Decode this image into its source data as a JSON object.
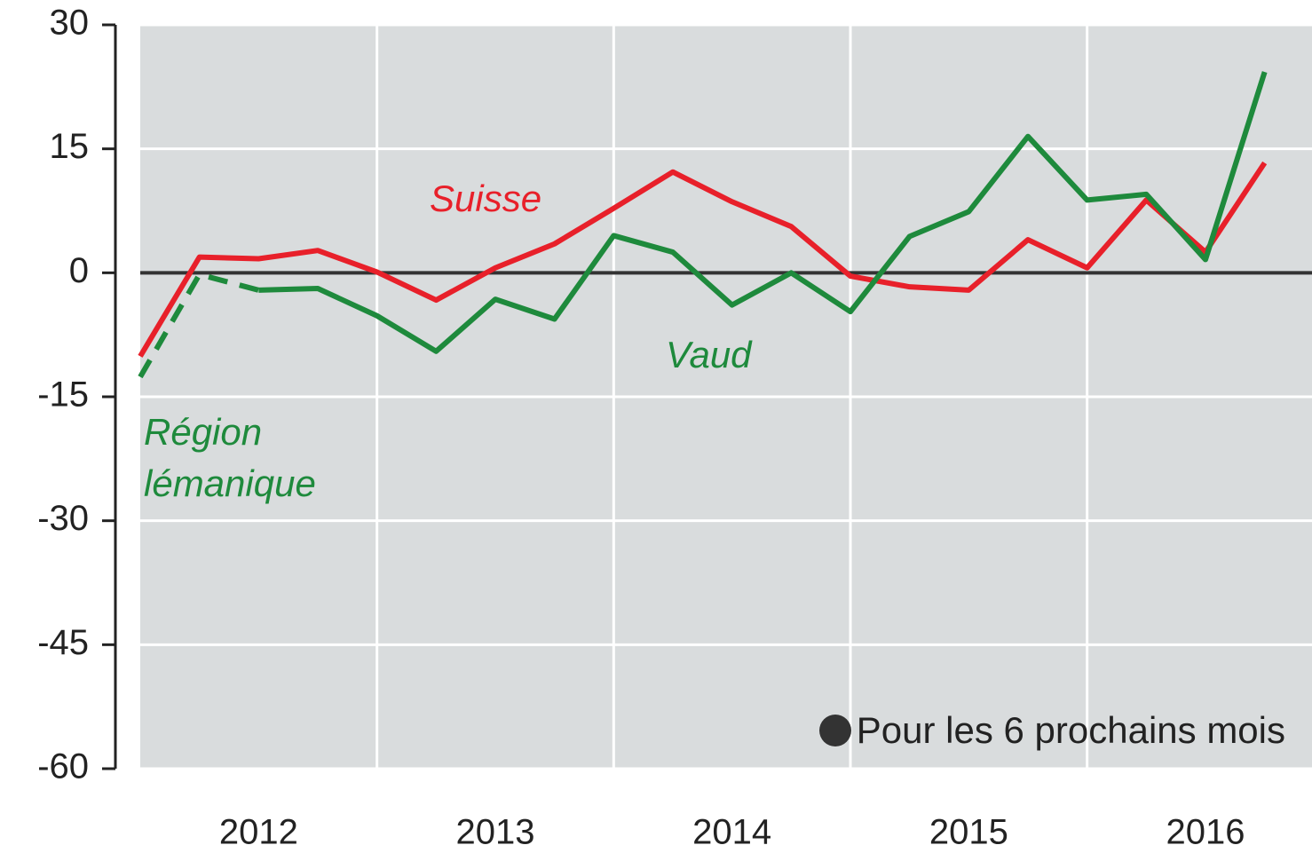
{
  "chart_data": {
    "type": "line",
    "x": [
      2012,
      2012.25,
      2012.5,
      2012.75,
      2013,
      2013.25,
      2013.5,
      2013.75,
      2014,
      2014.25,
      2014.5,
      2014.75,
      2015,
      2015.25,
      2015.5,
      2015.75,
      2016,
      2016.25,
      2016.5,
      2016.75
    ],
    "series": [
      {
        "name": "Suisse",
        "color": "#e8202a",
        "values": [
          -10.1,
          1.9,
          1.7,
          2.7,
          0.1,
          -3.3,
          0.6,
          3.5,
          7.8,
          12.2,
          8.6,
          5.6,
          -0.4,
          -1.7,
          -2.1,
          4.0,
          0.6,
          8.8,
          2.5,
          13.3
        ]
      },
      {
        "name": "Vaud",
        "color": "#1e8a3c",
        "values": [
          null,
          null,
          -2.1,
          -1.9,
          -5.2,
          -9.5,
          -3.2,
          -5.6,
          4.5,
          2.5,
          -3.9,
          0,
          -4.7,
          4.4,
          7.4,
          16.5,
          8.8,
          9.5,
          1.6,
          24.3
        ]
      },
      {
        "name": "Région lémanique",
        "color": "#1e8a3c",
        "dashed": true,
        "values": [
          -12.6,
          -0.2,
          -2.1,
          null,
          null,
          null,
          null,
          null,
          null,
          null,
          null,
          null,
          null,
          null,
          null,
          null,
          null,
          null,
          null,
          null
        ]
      }
    ],
    "annotation": "Pour les 6 prochains mois",
    "xlim": [
      2012,
      2016.95
    ],
    "xticks": [
      {
        "value": 2012.5,
        "label": "2012"
      },
      {
        "value": 2013.5,
        "label": "2013"
      },
      {
        "value": 2014.5,
        "label": "2014"
      },
      {
        "value": 2015.5,
        "label": "2015"
      },
      {
        "value": 2016.5,
        "label": "2016"
      }
    ],
    "ylim": [
      -60,
      30
    ],
    "yticks": [
      -60,
      -45,
      -30,
      -15,
      0,
      15,
      30
    ],
    "grid": true
  }
}
